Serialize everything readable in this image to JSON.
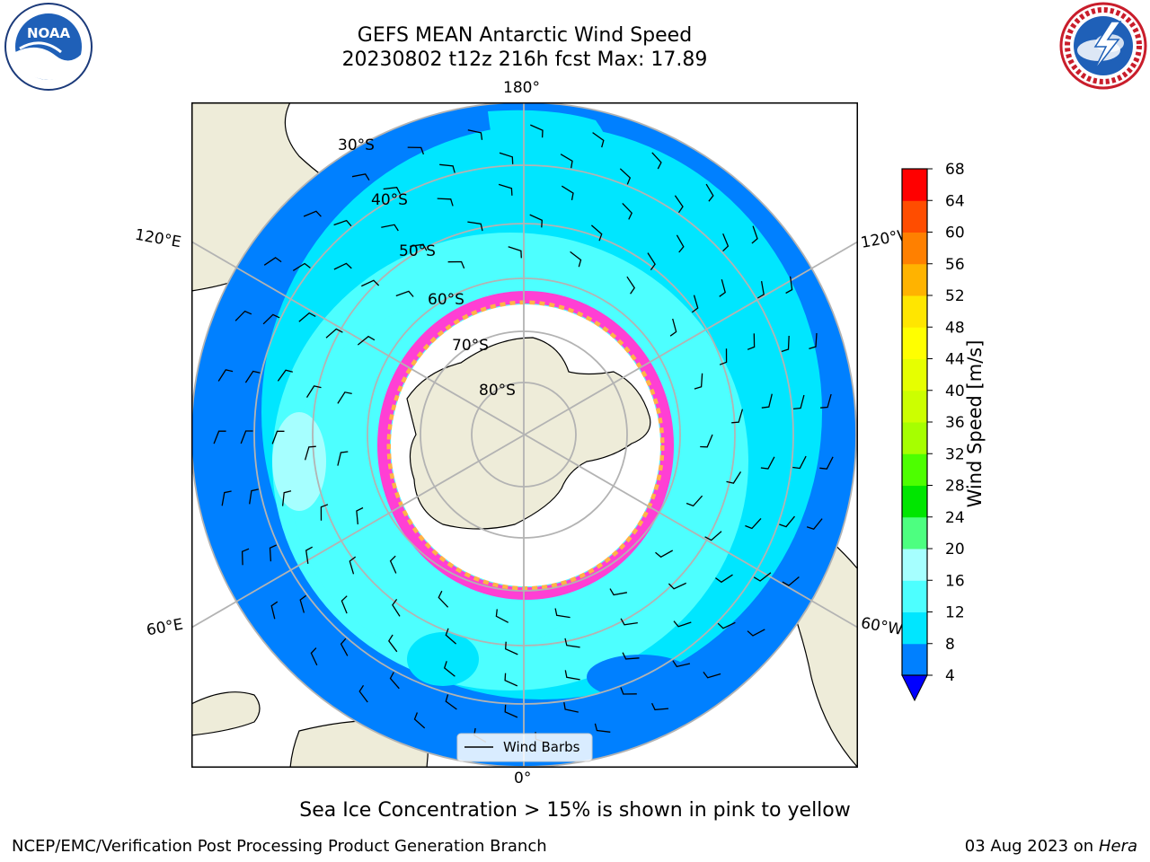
{
  "title": {
    "line1": "GEFS MEAN Antarctic Wind Speed",
    "line2": "20230802 t12z 216h fcst   Max: 17.89"
  },
  "logos": {
    "left": {
      "name": "noaa-logo",
      "text": "NOAA",
      "ring_text": "NATIONAL OCEANIC AND ATMOSPHERIC ADMINISTRATION · U.S. DEPARTMENT OF COMMERCE"
    },
    "right": {
      "name": "nws-logo",
      "ring_text": "NATIONAL WEATHER SERVICE"
    }
  },
  "map": {
    "projection": "south-polar-stereographic",
    "longitude_labels": {
      "top": "180°",
      "bottom": "0°",
      "left_upper": "120°E",
      "left_lower": "60°E",
      "right_upper": "120°W",
      "right_lower": "60°W"
    },
    "latitude_labels": [
      "30°S",
      "40°S",
      "50°S",
      "60°S",
      "70°S",
      "80°S"
    ],
    "legend": {
      "label": "Wind Barbs"
    },
    "colors": {
      "land": "#eeecd9",
      "ice_shelf": "#ffffff",
      "sea_ice_edge": [
        "#ff3fd4",
        "#ffb347",
        "#ffe85c"
      ],
      "grid": "#b3b3b3"
    }
  },
  "colorbar": {
    "label": "Wind Speed [m/s]",
    "ticks": [
      "4",
      "8",
      "12",
      "16",
      "20",
      "24",
      "28",
      "32",
      "36",
      "40",
      "44",
      "48",
      "52",
      "56",
      "60",
      "64",
      "68"
    ],
    "colors": [
      "#0080ff",
      "#00e6ff",
      "#4dffff",
      "#a6ffff",
      "#4dff80",
      "#00e600",
      "#4dff00",
      "#a6ff00",
      "#ccff00",
      "#e6ff00",
      "#ffff00",
      "#ffe600",
      "#ffb300",
      "#ff8000",
      "#ff4d00",
      "#ff0000"
    ],
    "extend_color": "#0000ff"
  },
  "caption": "Sea Ice Concentration > 15% is shown in pink to yellow",
  "footer": {
    "left": "NCEP/EMC/Verification Post Processing Product Generation Branch",
    "right_date": "03 Aug 2023 on",
    "right_host": "Hera"
  }
}
